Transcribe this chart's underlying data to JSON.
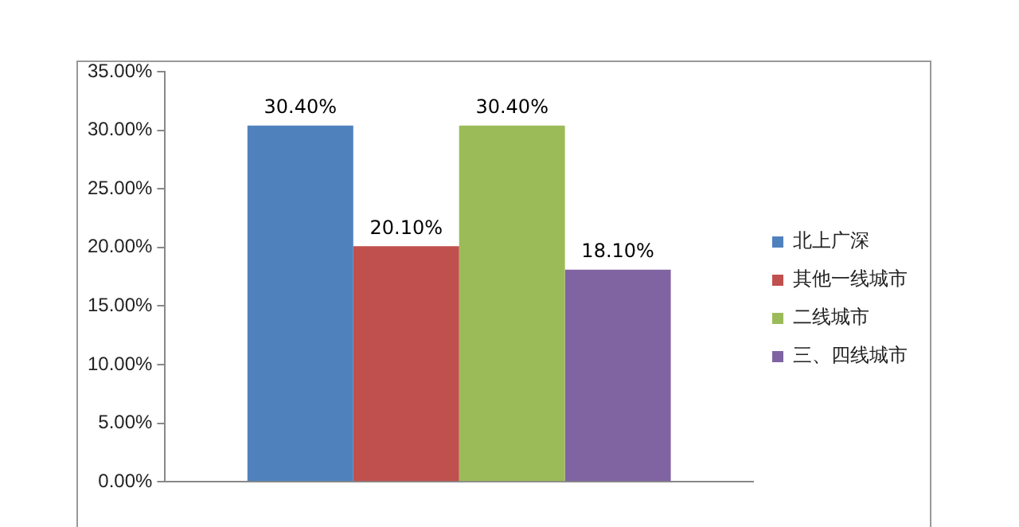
{
  "chart_data": {
    "type": "bar",
    "categories": [
      null
    ],
    "series": [
      {
        "name": "北上广深",
        "color": "#4f81bd",
        "values": [
          30.4
        ],
        "value_labels": [
          "30.40%"
        ]
      },
      {
        "name": "其他一线城市",
        "color": "#c0504d",
        "values": [
          20.1
        ],
        "value_labels": [
          "20.10%"
        ]
      },
      {
        "name": "二线城市",
        "color": "#9bbb59",
        "values": [
          30.4
        ],
        "value_labels": [
          "30.40%"
        ]
      },
      {
        "name": "三、四线城市",
        "color": "#8064a2",
        "values": [
          18.1
        ],
        "value_labels": [
          "18.10%"
        ]
      }
    ],
    "ylim": [
      0,
      35
    ],
    "yticks": [
      {
        "value": 0,
        "label": "0.00%"
      },
      {
        "value": 5,
        "label": "5.00%"
      },
      {
        "value": 10,
        "label": "10.00%"
      },
      {
        "value": 15,
        "label": "15.00%"
      },
      {
        "value": 20,
        "label": "20.00%"
      },
      {
        "value": 25,
        "label": "25.00%"
      },
      {
        "value": 30,
        "label": "30.00%"
      },
      {
        "value": 35,
        "label": "35.00%"
      }
    ],
    "grid": false,
    "legend": "right"
  }
}
